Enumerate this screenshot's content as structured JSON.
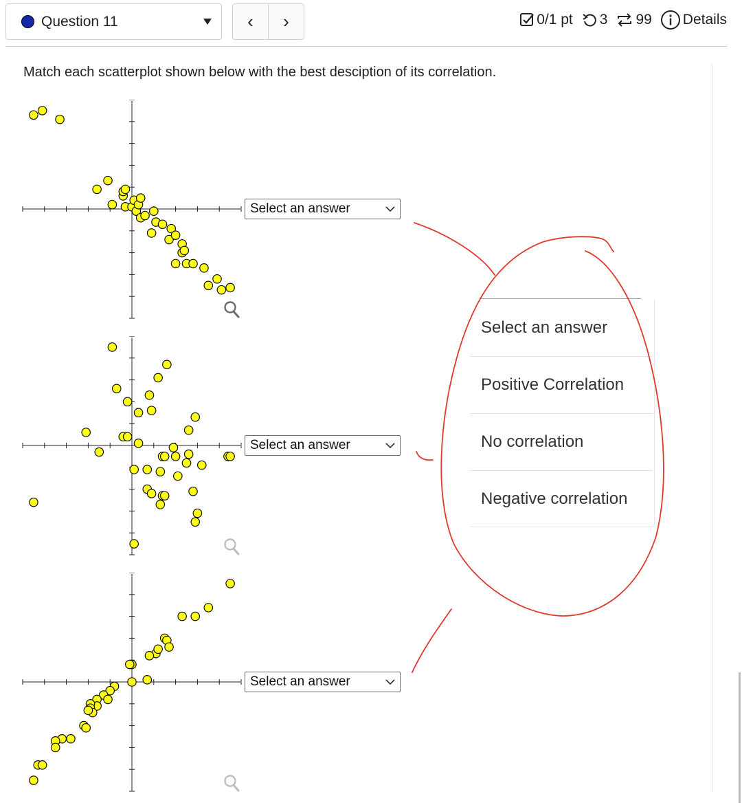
{
  "header": {
    "question_label": "Question 11",
    "prev_glyph": "‹",
    "next_glyph": "›",
    "points": "0/1 pt",
    "retries": "3",
    "attempts": "99",
    "details_label": "Details"
  },
  "prompt": "Match each scatterplot shown below with the best desciption of its correlation.",
  "selects": [
    {
      "value": "Select an answer"
    },
    {
      "value": "Select an answer"
    },
    {
      "value": "Select an answer"
    }
  ],
  "dropdown_options": [
    "Select an answer",
    "Positive Correlation",
    "No correlation",
    "Negative correlation"
  ],
  "colors": {
    "point_fill": "#ffff1a",
    "dot": "#1428a8",
    "annotation": "#e03a2f"
  },
  "icons": [
    "checkbox-icon",
    "retry-icon",
    "attempts-icon",
    "info-icon",
    "magnifier-icon",
    "chevron-down-icon"
  ],
  "chart_data": [
    {
      "type": "scatter",
      "xlim": [
        -5,
        5
      ],
      "ylim": [
        -5,
        5
      ],
      "points": [
        [
          -4.5,
          4.3
        ],
        [
          -4.1,
          4.5
        ],
        [
          -3.3,
          4.1
        ],
        [
          -1.6,
          0.9
        ],
        [
          -1.1,
          1.3
        ],
        [
          -0.9,
          0.2
        ],
        [
          -0.4,
          0.6
        ],
        [
          -0.4,
          0.8
        ],
        [
          -0.3,
          0.9
        ],
        [
          -0.3,
          0.1
        ],
        [
          0.0,
          0.1
        ],
        [
          0.1,
          0.4
        ],
        [
          0.2,
          -0.1
        ],
        [
          0.3,
          0.2
        ],
        [
          0.4,
          0.5
        ],
        [
          0.4,
          -0.4
        ],
        [
          0.6,
          -0.3
        ],
        [
          0.9,
          -1.1
        ],
        [
          1.0,
          -0.1
        ],
        [
          1.1,
          -0.6
        ],
        [
          1.4,
          -0.7
        ],
        [
          1.7,
          -1.4
        ],
        [
          1.8,
          -0.9
        ],
        [
          2.0,
          -1.2
        ],
        [
          2.3,
          -1.6
        ],
        [
          2.3,
          -2.0
        ],
        [
          2.4,
          -1.9
        ],
        [
          2.0,
          -2.5
        ],
        [
          2.5,
          -2.5
        ],
        [
          2.8,
          -2.5
        ],
        [
          3.3,
          -2.7
        ],
        [
          3.5,
          -3.5
        ],
        [
          3.9,
          -3.2
        ],
        [
          4.1,
          -3.7
        ],
        [
          4.5,
          -3.6
        ]
      ]
    },
    {
      "type": "scatter",
      "xlim": [
        -5,
        5
      ],
      "ylim": [
        -5,
        5
      ],
      "points": [
        [
          -0.9,
          4.5
        ],
        [
          0.8,
          2.3
        ],
        [
          1.6,
          3.7
        ],
        [
          1.2,
          3.1
        ],
        [
          -0.7,
          2.6
        ],
        [
          -0.2,
          2.0
        ],
        [
          0.3,
          1.5
        ],
        [
          0.9,
          1.6
        ],
        [
          2.9,
          1.3
        ],
        [
          2.6,
          0.7
        ],
        [
          -2.1,
          0.6
        ],
        [
          -0.4,
          0.4
        ],
        [
          -0.2,
          0.4
        ],
        [
          0.3,
          0.1
        ],
        [
          -1.5,
          -0.3
        ],
        [
          1.4,
          -0.5
        ],
        [
          1.5,
          -0.5
        ],
        [
          1.9,
          -0.1
        ],
        [
          2.0,
          -0.5
        ],
        [
          2.6,
          -0.4
        ],
        [
          2.5,
          -0.8
        ],
        [
          3.2,
          -0.9
        ],
        [
          0.1,
          -1.1
        ],
        [
          0.7,
          -1.1
        ],
        [
          1.3,
          -1.2
        ],
        [
          2.1,
          -1.4
        ],
        [
          4.4,
          -0.5
        ],
        [
          4.5,
          -0.5
        ],
        [
          0.7,
          -2.0
        ],
        [
          0.9,
          -2.2
        ],
        [
          1.4,
          -2.3
        ],
        [
          1.5,
          -2.3
        ],
        [
          1.3,
          -2.7
        ],
        [
          2.8,
          -2.1
        ],
        [
          3.0,
          -3.1
        ],
        [
          2.9,
          -3.5
        ],
        [
          -4.5,
          -2.6
        ],
        [
          0.1,
          -4.5
        ]
      ]
    },
    {
      "type": "scatter",
      "xlim": [
        -5,
        5
      ],
      "ylim": [
        -5,
        5
      ],
      "points": [
        [
          4.5,
          4.5
        ],
        [
          3.5,
          3.4
        ],
        [
          2.9,
          3.0
        ],
        [
          2.3,
          3.0
        ],
        [
          1.5,
          2.0
        ],
        [
          1.6,
          1.9
        ],
        [
          1.7,
          1.6
        ],
        [
          1.1,
          1.3
        ],
        [
          1.2,
          1.5
        ],
        [
          0.8,
          1.2
        ],
        [
          0.0,
          0.8
        ],
        [
          -0.1,
          0.8
        ],
        [
          0.7,
          0.1
        ],
        [
          0.0,
          0.0
        ],
        [
          -0.8,
          -0.2
        ],
        [
          -1.0,
          -0.4
        ],
        [
          -1.3,
          -0.6
        ],
        [
          -1.1,
          -0.8
        ],
        [
          -1.6,
          -0.8
        ],
        [
          -1.6,
          -1.1
        ],
        [
          -1.9,
          -1.0
        ],
        [
          -1.9,
          -1.2
        ],
        [
          -1.8,
          -1.4
        ],
        [
          -2.0,
          -1.3
        ],
        [
          -2.2,
          -2.0
        ],
        [
          -2.1,
          -2.1
        ],
        [
          -2.8,
          -2.6
        ],
        [
          -3.2,
          -2.6
        ],
        [
          -3.5,
          -2.7
        ],
        [
          -3.5,
          -3.0
        ],
        [
          -4.3,
          -3.8
        ],
        [
          -4.1,
          -3.8
        ],
        [
          -4.5,
          -4.5
        ]
      ]
    }
  ]
}
